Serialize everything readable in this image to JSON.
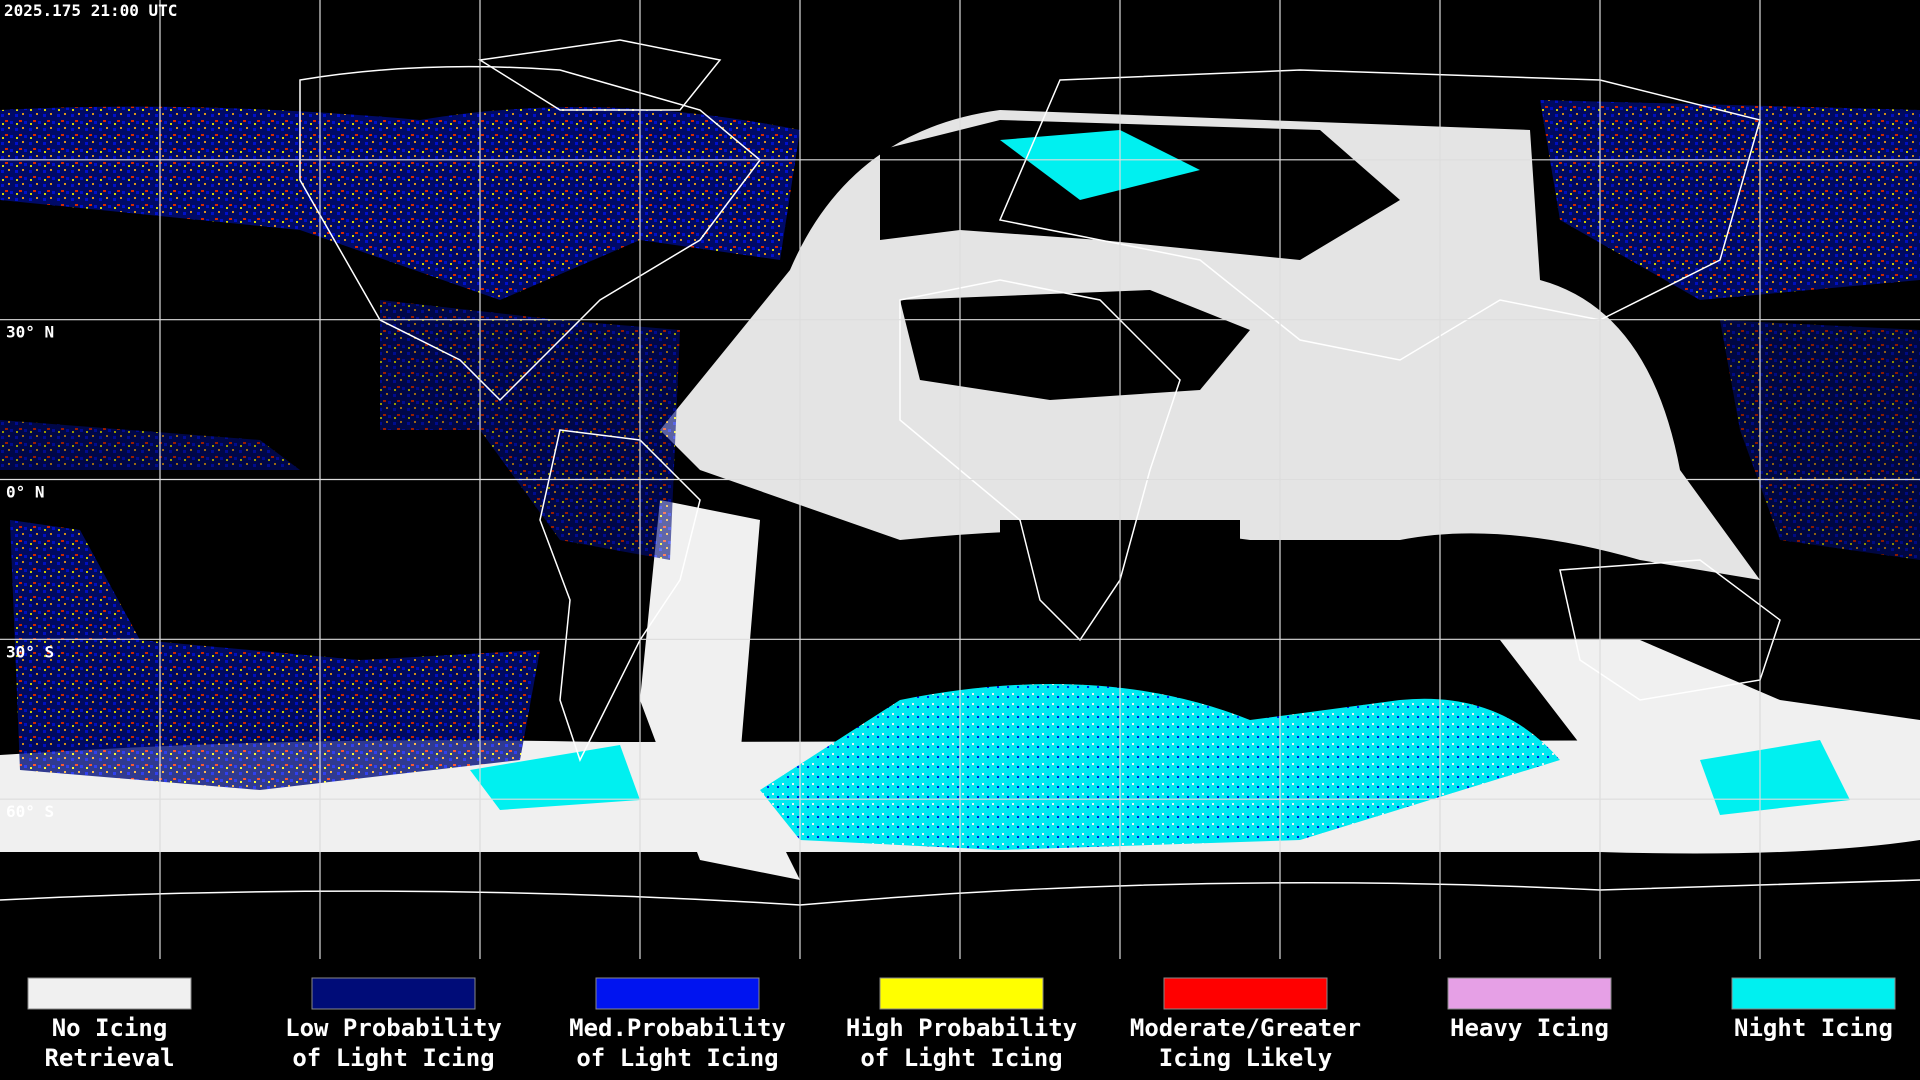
{
  "timestamp": "2025.175 21:00 UTC",
  "latitude_labels": [
    "30° N",
    "0° N",
    "30° S",
    "60° S"
  ],
  "legend": [
    {
      "lines": [
        "No Icing",
        "Retrieval"
      ],
      "color": "#f0f0f0"
    },
    {
      "lines": [
        "Low Probability",
        "of Light Icing"
      ],
      "color": "#000c78"
    },
    {
      "lines": [
        "Med.Probability",
        "of Light Icing"
      ],
      "color": "#0014f0"
    },
    {
      "lines": [
        "High Probability",
        "of Light Icing"
      ],
      "color": "#ffff00"
    },
    {
      "lines": [
        "Moderate/Greater",
        "Icing Likely"
      ],
      "color": "#ff0000"
    },
    {
      "lines": [
        "Heavy Icing"
      ],
      "color": "#e6a0e6"
    },
    {
      "lines": [
        "Night Icing"
      ],
      "color": "#00f0f0"
    }
  ]
}
